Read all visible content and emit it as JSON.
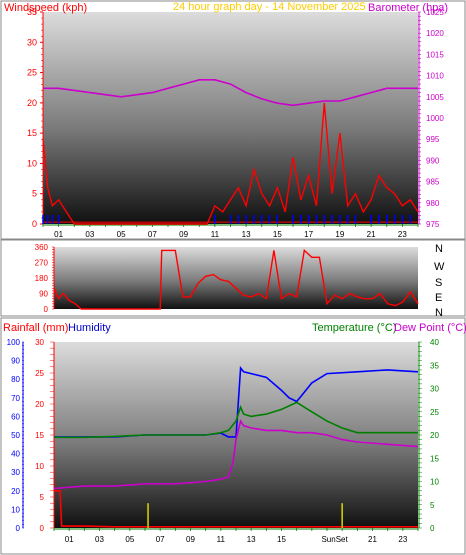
{
  "header": {
    "windspeed_label": "Windspeed (kph)",
    "graph_title": "24 hour graph day - 14 November 2025",
    "barometer_label": "Barometer (hpa)"
  },
  "bottom_header": {
    "rainfall_label": "Rainfall (mm)",
    "humidity_label": "Humidity",
    "temperature_label": "Temperature (°C)",
    "dewpoint_label": "Dew Point (°C)"
  },
  "compass_letters": [
    "N",
    "W",
    "S",
    "E",
    "N"
  ],
  "colors": {
    "windspeed": "#ff0000",
    "wind_blue": "#0000ff",
    "wind_green": "#008000",
    "barometer": "#cc00cc",
    "title": "#ffcc00",
    "direction": "#ff0000",
    "rainfall": "#ff0000",
    "humidity": "#0000ff",
    "temperature": "#008000",
    "dewpoint": "#cc00cc",
    "sun_marker": "#cccc00"
  },
  "chart_data": [
    {
      "type": "line",
      "name": "wind-barometer",
      "x_ticks": [
        "01",
        "03",
        "05",
        "07",
        "09",
        "11",
        "13",
        "15",
        "17",
        "19",
        "21",
        "23"
      ],
      "xlim": [
        0,
        24
      ],
      "y_left": {
        "label": "Windspeed (kph)",
        "ylim": [
          0,
          35
        ],
        "ticks": [
          0,
          5,
          10,
          15,
          20,
          25,
          30,
          35
        ]
      },
      "y_right": {
        "label": "Barometer (hpa)",
        "ylim": [
          975,
          1025
        ],
        "ticks": [
          975,
          980,
          985,
          990,
          995,
          1000,
          1005,
          1010,
          1015,
          1020,
          1025
        ]
      },
      "series": [
        {
          "name": "Windspeed (kph)",
          "axis": "left",
          "x": [
            0,
            0.3,
            0.6,
            1,
            1.5,
            2,
            2.5,
            3,
            4,
            5,
            6,
            7,
            8,
            9,
            10,
            10.5,
            11,
            11.5,
            12,
            12.5,
            13,
            13.5,
            14,
            14.5,
            15,
            15.5,
            16,
            16.5,
            17,
            17.5,
            18,
            18.5,
            19,
            19.5,
            20,
            20.5,
            21,
            21.5,
            22,
            22.5,
            23,
            23.5,
            24
          ],
          "y": [
            14,
            6,
            3,
            4,
            2,
            0,
            0,
            0,
            0,
            0,
            0,
            0,
            0,
            0,
            0,
            0,
            3,
            2,
            4,
            6,
            3,
            9,
            5,
            3,
            6,
            2,
            11,
            4,
            8,
            3,
            20,
            5,
            15,
            3,
            5,
            2,
            4,
            8,
            6,
            5,
            3,
            4,
            2
          ]
        },
        {
          "name": "Barometer (hpa)",
          "axis": "right",
          "x": [
            0,
            1,
            2,
            3,
            4,
            5,
            6,
            7,
            8,
            9,
            10,
            11,
            12,
            13,
            14,
            15,
            16,
            17,
            18,
            19,
            20,
            21,
            22,
            23,
            24
          ],
          "y": [
            1007,
            1007,
            1006.5,
            1006,
            1005.5,
            1005,
            1005.5,
            1006,
            1007,
            1008,
            1009,
            1009,
            1008,
            1006,
            1004.5,
            1003.5,
            1003,
            1003.5,
            1004,
            1004,
            1005,
            1006,
            1007,
            1007,
            1007
          ]
        }
      ]
    },
    {
      "type": "line",
      "name": "wind-direction",
      "xlim": [
        0,
        24
      ],
      "y_left": {
        "ticks": [
          0,
          90,
          180,
          270,
          360
        ],
        "ylim": [
          0,
          360
        ]
      },
      "series": [
        {
          "name": "Wind direction",
          "x": [
            0,
            0.3,
            0.6,
            1,
            1.4,
            1.8,
            2.2,
            2.6,
            3,
            4,
            5,
            6,
            7,
            7.1,
            7.5,
            8,
            8.5,
            9,
            9.5,
            10,
            10.5,
            11,
            11.5,
            12,
            12.5,
            13,
            13.5,
            14,
            14.5,
            15,
            15.5,
            16,
            16.5,
            17,
            17.5,
            18,
            18.5,
            19,
            19.5,
            20,
            20.5,
            21,
            21.5,
            22,
            22.5,
            23,
            23.5,
            24
          ],
          "y": [
            120,
            60,
            90,
            50,
            30,
            0,
            0,
            0,
            0,
            0,
            0,
            0,
            0,
            340,
            340,
            340,
            70,
            70,
            150,
            190,
            200,
            170,
            160,
            120,
            80,
            70,
            90,
            60,
            340,
            60,
            90,
            70,
            340,
            300,
            300,
            30,
            80,
            60,
            90,
            70,
            60,
            60,
            90,
            30,
            20,
            40,
            100,
            30
          ]
        }
      ]
    },
    {
      "type": "line",
      "name": "temperature-humidity-rainfall",
      "x_ticks": [
        "01",
        "03",
        "05",
        "07",
        "09",
        "11",
        "13",
        "15",
        "SunSet",
        "21",
        "23"
      ],
      "xlim": [
        0,
        24
      ],
      "y_humidity": {
        "ticks": [
          0,
          10,
          20,
          30,
          40,
          50,
          60,
          70,
          80,
          90,
          100
        ],
        "ylim": [
          0,
          100
        ]
      },
      "y_rainfall": {
        "ticks": [
          0,
          5,
          10,
          15,
          20,
          25,
          30
        ],
        "ylim": [
          0,
          30
        ]
      },
      "y_temp": {
        "ticks": [
          0,
          5,
          10,
          15,
          20,
          25,
          30,
          35,
          40
        ],
        "ylim": [
          0,
          40
        ]
      },
      "series": [
        {
          "name": "Humidity",
          "axis": "humidity",
          "x": [
            0,
            2,
            4,
            6,
            8,
            10,
            11,
            11.5,
            12,
            12.3,
            12.5,
            13,
            14,
            15,
            15.5,
            16,
            16.5,
            17,
            18,
            20,
            22,
            24
          ],
          "y": [
            49,
            49,
            49,
            50,
            50,
            50,
            51,
            49,
            49,
            86,
            84,
            83,
            81,
            74,
            70,
            68,
            73,
            78,
            83,
            84,
            85,
            84
          ]
        },
        {
          "name": "Rainfall (mm)",
          "axis": "rainfall",
          "x": [
            0,
            0.4,
            0.5,
            2,
            4,
            6,
            8,
            10,
            12,
            14,
            16,
            18,
            20,
            22,
            24
          ],
          "y": [
            6,
            6,
            0.3,
            0.3,
            0.2,
            0.2,
            0.2,
            0.2,
            0.2,
            0.2,
            0.2,
            0.2,
            0.2,
            0.2,
            0.2
          ]
        },
        {
          "name": "Temperature (°C)",
          "axis": "temp",
          "x": [
            0,
            2,
            4,
            6,
            8,
            10,
            11,
            11.5,
            12,
            12.3,
            12.5,
            13,
            14,
            15,
            16,
            17,
            18,
            19,
            20,
            22,
            24
          ],
          "y": [
            19.5,
            19.5,
            19.7,
            20,
            20,
            20,
            20.5,
            21,
            23,
            26,
            24.5,
            24,
            24.5,
            25.5,
            27,
            25,
            23,
            21.5,
            20.5,
            20.5,
            20.5
          ]
        },
        {
          "name": "Dew Point (°C)",
          "axis": "temp",
          "x": [
            0,
            2,
            4,
            6,
            8,
            10,
            11,
            11.5,
            11.8,
            12,
            12.3,
            12.5,
            13,
            14,
            15,
            16,
            17,
            18,
            19,
            20,
            22,
            24
          ],
          "y": [
            8.5,
            9,
            9,
            9.5,
            9.5,
            10,
            10.5,
            11,
            14,
            19,
            23,
            22,
            21.5,
            21,
            21,
            20.5,
            20.5,
            20,
            19,
            18.5,
            18,
            17.5
          ]
        },
        {
          "name": "Sun markers",
          "axis": "rainfall",
          "x": [
            6.2,
            19
          ],
          "y": [
            2,
            2
          ]
        }
      ]
    }
  ]
}
